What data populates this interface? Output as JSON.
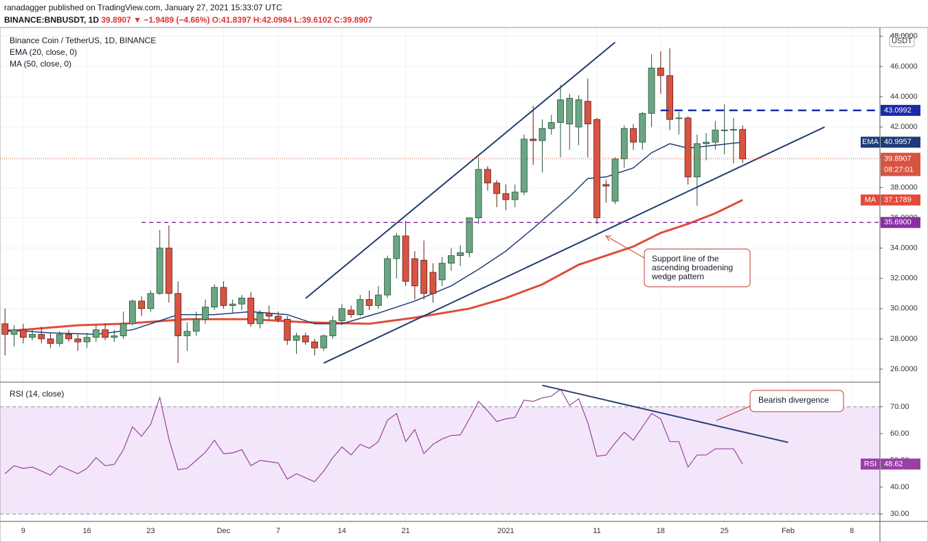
{
  "chart_data": {
    "type": "candlestick",
    "header": {
      "byline": "ranadagger published on TradingView.com, January 27, 2021 15:33:07 UTC",
      "symbol": "BINANCE:BNBUSDT, 1D",
      "price": "39.8907",
      "change": "▼ −1.9489 (−4.66%)",
      "ohlc": "O:41.8397 H:42.0984 L:39.6102 C:39.8907"
    },
    "title": "Binance Coin / TetherUS, 1D, BINANCE",
    "currency": "USDT",
    "countdown": "08:27:01",
    "up_color": "#6ba583",
    "down_color": "#d75442",
    "xlim": [
      "2020-11-06",
      "2021-02-11"
    ],
    "xticks": [
      {
        "value": "2020-11-09",
        "label": "9"
      },
      {
        "value": "2020-11-16",
        "label": "16"
      },
      {
        "value": "2020-11-23",
        "label": "23"
      },
      {
        "value": "2020-12-01",
        "label": "Dec"
      },
      {
        "value": "2020-12-07",
        "label": "7"
      },
      {
        "value": "2020-12-14",
        "label": "14"
      },
      {
        "value": "2020-12-21",
        "label": "21"
      },
      {
        "value": "2021-01-01",
        "label": "2021"
      },
      {
        "value": "2021-01-11",
        "label": "11"
      },
      {
        "value": "2021-01-18",
        "label": "18"
      },
      {
        "value": "2021-01-25",
        "label": "25"
      },
      {
        "value": "2021-02-01",
        "label": "Feb"
      },
      {
        "value": "2021-02-08",
        "label": "8"
      }
    ],
    "ylim": [
      25.14,
      48.58
    ],
    "yticks": [
      {
        "value": 26,
        "label": "26.0000"
      },
      {
        "value": 28,
        "label": "28.0000"
      },
      {
        "value": 30,
        "label": "30.0000"
      },
      {
        "value": 32,
        "label": "32.0000"
      },
      {
        "value": 34,
        "label": "34.0000"
      },
      {
        "value": 36,
        "label": "36.0000"
      },
      {
        "value": 38,
        "label": "38.0000"
      },
      {
        "value": 40,
        "label": "40.0000"
      },
      {
        "value": 42,
        "label": "42.0000"
      },
      {
        "value": 44,
        "label": "44.0000"
      },
      {
        "value": 46,
        "label": "46.0000"
      },
      {
        "value": 48,
        "label": "48.0000"
      }
    ],
    "grid": true,
    "dates": [
      "2020-11-07",
      "2020-11-08",
      "2020-11-09",
      "2020-11-10",
      "2020-11-11",
      "2020-11-12",
      "2020-11-13",
      "2020-11-14",
      "2020-11-15",
      "2020-11-16",
      "2020-11-17",
      "2020-11-18",
      "2020-11-19",
      "2020-11-20",
      "2020-11-21",
      "2020-11-22",
      "2020-11-23",
      "2020-11-24",
      "2020-11-25",
      "2020-11-26",
      "2020-11-27",
      "2020-11-28",
      "2020-11-29",
      "2020-11-30",
      "2020-12-01",
      "2020-12-02",
      "2020-12-03",
      "2020-12-04",
      "2020-12-05",
      "2020-12-06",
      "2020-12-07",
      "2020-12-08",
      "2020-12-09",
      "2020-12-10",
      "2020-12-11",
      "2020-12-12",
      "2020-12-13",
      "2020-12-14",
      "2020-12-15",
      "2020-12-16",
      "2020-12-17",
      "2020-12-18",
      "2020-12-19",
      "2020-12-20",
      "2020-12-21",
      "2020-12-22",
      "2020-12-23",
      "2020-12-24",
      "2020-12-25",
      "2020-12-26",
      "2020-12-27",
      "2020-12-28",
      "2020-12-29",
      "2020-12-30",
      "2020-12-31",
      "2021-01-01",
      "2021-01-02",
      "2021-01-03",
      "2021-01-04",
      "2021-01-05",
      "2021-01-06",
      "2021-01-07",
      "2021-01-08",
      "2021-01-09",
      "2021-01-10",
      "2021-01-11",
      "2021-01-12",
      "2021-01-13",
      "2021-01-14",
      "2021-01-15",
      "2021-01-16",
      "2021-01-17",
      "2021-01-18",
      "2021-01-19",
      "2021-01-20",
      "2021-01-21",
      "2021-01-22",
      "2021-01-23",
      "2021-01-24",
      "2021-01-25",
      "2021-01-26",
      "2021-01-27"
    ],
    "open": [
      29.0,
      28.3,
      28.6,
      28.1,
      28.3,
      28.0,
      27.7,
      28.3,
      28.0,
      27.8,
      28.1,
      28.6,
      28.1,
      28.2,
      29.0,
      30.5,
      30.0,
      31.0,
      34.0,
      31.0,
      28.2,
      28.5,
      29.3,
      30.1,
      31.4,
      30.2,
      30.3,
      30.7,
      29.0,
      29.7,
      29.5,
      29.3,
      27.9,
      28.2,
      27.8,
      27.4,
      28.2,
      29.2,
      29.9,
      29.6,
      30.6,
      30.2,
      30.9,
      33.3,
      34.8,
      33.3,
      33.2,
      32.4,
      31.9,
      33.0,
      33.5,
      33.7,
      36.0,
      39.2,
      38.3,
      37.6,
      37.2,
      37.7,
      41.2,
      41.1,
      41.9,
      42.3,
      42.2,
      42.0,
      43.7,
      42.5,
      38.2,
      37.1,
      39.9,
      41.9,
      41.0,
      42.9,
      45.9,
      45.4,
      42.6,
      42.6,
      38.7,
      40.9,
      41.0,
      41.8,
      41.8,
      41.8397
    ],
    "high": [
      30.0,
      28.9,
      29.0,
      28.6,
      28.8,
      28.4,
      28.5,
      28.6,
      28.3,
      28.4,
      28.9,
      29.0,
      28.6,
      29.8,
      30.6,
      30.8,
      31.2,
      35.2,
      35.5,
      31.8,
      29.1,
      29.8,
      30.6,
      31.6,
      31.8,
      30.6,
      30.9,
      31.1,
      29.9,
      30.2,
      29.8,
      29.5,
      28.4,
      28.4,
      28.0,
      28.3,
      29.5,
      30.3,
      30.2,
      30.9,
      31.2,
      31.5,
      33.5,
      35.0,
      35.8,
      33.8,
      34.5,
      33.0,
      33.4,
      34.0,
      34.2,
      36.0,
      40.0,
      39.4,
      38.5,
      38.2,
      38.2,
      41.5,
      43.4,
      42.5,
      42.8,
      44.8,
      44.2,
      44.1,
      45.2,
      42.6,
      38.5,
      40.0,
      42.1,
      42.2,
      43.0,
      46.8,
      47.0,
      47.2,
      43.0,
      42.7,
      41.5,
      41.6,
      42.4,
      43.5,
      42.6,
      42.0984
    ],
    "low": [
      26.9,
      27.5,
      27.7,
      27.9,
      27.7,
      27.4,
      27.5,
      27.8,
      27.2,
      27.4,
      27.8,
      27.9,
      27.8,
      28.0,
      28.9,
      29.5,
      29.8,
      30.9,
      30.4,
      26.4,
      27.2,
      28.2,
      29.0,
      29.9,
      30.0,
      29.7,
      29.9,
      28.8,
      28.7,
      29.3,
      29.1,
      27.6,
      27.0,
      27.6,
      26.9,
      27.2,
      28.0,
      28.9,
      29.4,
      29.5,
      29.9,
      30.0,
      30.7,
      32.0,
      31.5,
      30.6,
      30.6,
      30.4,
      31.5,
      32.5,
      32.8,
      33.4,
      35.6,
      37.8,
      36.7,
      36.5,
      36.7,
      37.5,
      39.5,
      39.0,
      41.5,
      40.0,
      40.5,
      40.8,
      40.0,
      35.6,
      37.0,
      36.9,
      39.3,
      40.5,
      40.5,
      42.0,
      44.2,
      41.8,
      41.5,
      38.2,
      36.8,
      39.8,
      40.5,
      40.2,
      39.6,
      39.6102
    ],
    "close": [
      28.3,
      28.6,
      28.1,
      28.3,
      28.0,
      27.7,
      28.3,
      28.0,
      27.8,
      28.1,
      28.6,
      28.1,
      28.2,
      29.0,
      30.5,
      30.0,
      31.0,
      34.0,
      31.0,
      28.2,
      28.5,
      29.3,
      30.1,
      31.4,
      30.2,
      30.3,
      30.7,
      29.0,
      29.7,
      29.5,
      29.3,
      27.9,
      28.2,
      27.8,
      27.4,
      28.2,
      29.2,
      30.0,
      29.6,
      30.6,
      30.2,
      30.9,
      33.3,
      34.8,
      31.8,
      31.5,
      31.0,
      31.0,
      33.0,
      33.5,
      33.7,
      36.0,
      39.2,
      38.3,
      37.6,
      37.2,
      37.7,
      41.2,
      41.1,
      41.9,
      42.3,
      43.8,
      43.9,
      43.8,
      42.2,
      36.0,
      38.1,
      39.9,
      41.9,
      41.0,
      42.9,
      45.9,
      45.4,
      42.5,
      42.6,
      38.7,
      40.9,
      41.0,
      41.8,
      41.8,
      41.84,
      39.8907
    ],
    "ema": {
      "name": "EMA (20, close, 0)",
      "tag": "EMA",
      "color": "#1e3a78",
      "dates": [
        "2020-11-07",
        "2020-11-12",
        "2020-11-17",
        "2020-11-21",
        "2020-11-24",
        "2020-11-26",
        "2020-11-30",
        "2020-12-04",
        "2020-12-08",
        "2020-12-11",
        "2020-12-14",
        "2020-12-18",
        "2020-12-22",
        "2020-12-26",
        "2020-12-29",
        "2021-01-01",
        "2021-01-04",
        "2021-01-08",
        "2021-01-10",
        "2021-01-12",
        "2021-01-15",
        "2021-01-17",
        "2021-01-19",
        "2021-01-21",
        "2021-01-24",
        "2021-01-27"
      ],
      "values": [
        28.6,
        28.4,
        28.3,
        28.6,
        29.2,
        29.6,
        29.6,
        29.8,
        29.6,
        29.0,
        29.0,
        29.7,
        30.5,
        31.5,
        32.6,
        33.8,
        35.3,
        37.4,
        38.6,
        38.7,
        39.3,
        40.3,
        40.9,
        40.6,
        40.8,
        40.9957
      ]
    },
    "ma": {
      "name": "MA (50, close, 0)",
      "tag": "MA",
      "color": "#e04b3a",
      "dates": [
        "2020-11-07",
        "2020-11-15",
        "2020-11-20",
        "2020-11-27",
        "2020-12-04",
        "2020-12-10",
        "2020-12-17",
        "2020-12-22",
        "2020-12-28",
        "2021-01-01",
        "2021-01-05",
        "2021-01-09",
        "2021-01-12",
        "2021-01-15",
        "2021-01-18",
        "2021-01-21",
        "2021-01-24",
        "2021-01-27"
      ],
      "values": [
        28.5,
        28.9,
        29.0,
        29.3,
        29.3,
        29.1,
        29.0,
        29.4,
        30.0,
        30.7,
        31.6,
        32.9,
        33.5,
        34.1,
        35.0,
        35.6,
        36.3,
        37.1789
      ]
    },
    "levels": [
      {
        "from": "2021-01-18",
        "value": 43.0992,
        "label": "43.0992",
        "color": "#1a2aa8"
      },
      {
        "from": "2020-11-22",
        "value": 35.69,
        "label": "35.6900",
        "color": "#8a2fa3"
      }
    ],
    "trendlines": [
      {
        "dates": [
          "2020-12-10",
          "2021-01-13"
        ],
        "values": [
          30.67,
          47.6
        ],
        "color": "#1f3a6e"
      },
      {
        "dates": [
          "2020-12-12",
          "2021-02-05"
        ],
        "values": [
          26.4,
          42.0
        ],
        "color": "#1f3a6e"
      }
    ],
    "annotations": [
      {
        "lines": [
          "Support line of the",
          "ascending broadening",
          "wedge pattern"
        ]
      },
      {
        "lines": [
          "Bearish divergence"
        ]
      }
    ],
    "rsi": {
      "name": "RSI (14, close)",
      "tag": "RSI",
      "color": "#9a3fa3",
      "ylim": [
        27.2,
        79.2
      ],
      "yticks": [
        {
          "value": 30,
          "label": "30.00"
        },
        {
          "value": 40,
          "label": "40.00"
        },
        {
          "value": 50,
          "label": "50.00"
        },
        {
          "value": 60,
          "label": "60.00"
        },
        {
          "value": 70,
          "label": "70.00"
        }
      ],
      "band": [
        30,
        70
      ],
      "values": [
        45,
        48,
        47,
        47.5,
        46,
        44.5,
        48,
        46.5,
        45,
        47,
        51,
        48,
        48.5,
        54,
        62.5,
        59,
        63.5,
        73.5,
        58,
        46.5,
        47,
        50,
        53,
        57.5,
        52.5,
        52.8,
        54,
        48,
        50,
        49.5,
        49,
        43,
        45,
        43.5,
        42,
        46,
        51,
        55,
        52,
        56,
        54.5,
        57,
        65,
        67.5,
        57,
        61.5,
        52.5,
        56,
        58,
        59.3,
        59.5,
        65.5,
        72,
        68.5,
        64.5,
        65.5,
        66,
        72.5,
        72,
        73.3,
        74,
        76.5,
        70.5,
        73,
        64,
        51.5,
        52,
        56.5,
        60.5,
        57.5,
        62.5,
        67.5,
        65.5,
        57,
        57,
        47.5,
        52,
        52,
        54.3,
        54.3,
        54.3,
        48.62
      ],
      "divergence": {
        "dates": [
          "2021-01-05",
          "2021-02-01"
        ],
        "values": [
          78,
          56.7
        ],
        "color": "#2a3f7a"
      }
    }
  }
}
